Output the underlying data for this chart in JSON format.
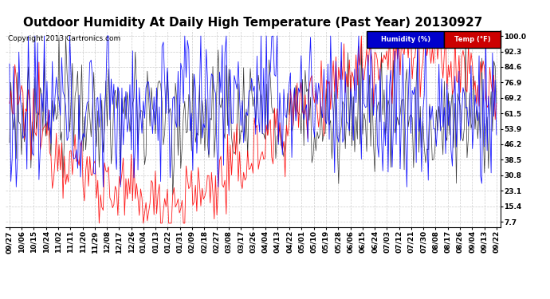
{
  "title": "Outdoor Humidity At Daily High Temperature (Past Year) 20130927",
  "copyright": "Copyright 2013 Cartronics.com",
  "background_color": "#ffffff",
  "plot_bg_color": "#ffffff",
  "grid_color": "#cccccc",
  "humidity_color": "#0000ff",
  "temp_color": "#ff0000",
  "black_color": "#000000",
  "yticks": [
    7.7,
    15.4,
    23.1,
    30.8,
    38.5,
    46.2,
    53.9,
    61.5,
    69.2,
    76.9,
    84.6,
    92.3,
    100.0
  ],
  "ylim": [
    5,
    103
  ],
  "xlabels": [
    "09/27",
    "10/06",
    "10/15",
    "10/24",
    "11/02",
    "11/11",
    "11/20",
    "11/29",
    "12/08",
    "12/17",
    "12/26",
    "01/04",
    "01/13",
    "01/22",
    "01/31",
    "02/09",
    "02/18",
    "02/27",
    "03/08",
    "03/17",
    "03/26",
    "04/04",
    "04/13",
    "04/22",
    "05/01",
    "05/10",
    "05/19",
    "05/28",
    "06/06",
    "06/15",
    "06/24",
    "07/03",
    "07/12",
    "07/21",
    "07/30",
    "08/08",
    "08/17",
    "08/26",
    "09/04",
    "09/13",
    "09/22"
  ],
  "legend_humidity_label": "Humidity (%)",
  "legend_temp_label": "Temp (°F)",
  "legend_humidity_bg": "#0000cc",
  "legend_temp_bg": "#cc0000",
  "title_fontsize": 11,
  "tick_fontsize": 6.5,
  "copyright_fontsize": 6.5
}
